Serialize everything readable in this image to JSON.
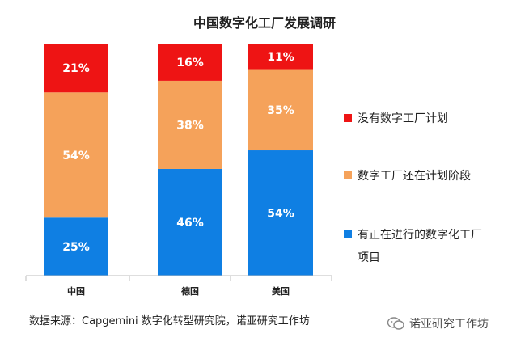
{
  "chart_data": {
    "type": "bar",
    "stacked": true,
    "title": "中国数字化工厂发展调研",
    "categories": [
      "中国",
      "德国",
      "美国"
    ],
    "series": [
      {
        "name": "有正在进行的数字化工厂项目",
        "color": "#0f7fe3",
        "values": [
          25,
          46,
          54
        ],
        "labels": [
          "25%",
          "46%",
          "54%"
        ]
      },
      {
        "name": "数字工厂还在计划阶段",
        "color": "#f5a25a",
        "values": [
          54,
          38,
          35
        ],
        "labels": [
          "54%",
          "38%",
          "35%"
        ]
      },
      {
        "name": "没有数字工厂计划",
        "color": "#ee1414",
        "values": [
          21,
          16,
          11
        ],
        "labels": [
          "21%",
          "16%",
          "11%"
        ]
      }
    ],
    "legend": [
      {
        "label": "没有数字工厂计划",
        "color": "#ee1414"
      },
      {
        "label": "数字工厂还在计划阶段",
        "color": "#f5a25a"
      },
      {
        "label": "有正在进行的数字化工厂",
        "label_line2": "项目",
        "color": "#0f7fe3"
      }
    ],
    "legend_position": "right",
    "ylim": [
      0,
      100
    ],
    "grid": false
  },
  "footer": {
    "source": "数据来源：Capgemini 数字化转型研究院，诺亚研究工作坊",
    "watermark": "诺亚研究工作坊",
    "watermark_icon": "wechat-icon"
  }
}
